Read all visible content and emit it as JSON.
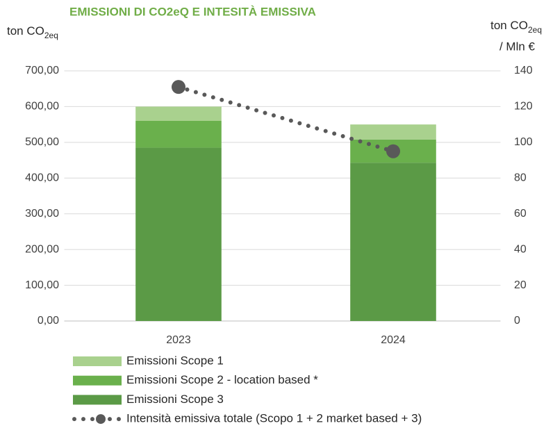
{
  "chart_data": {
    "type": "bar",
    "title": "EMISSIONI DI CO2eQ E INTESITÀ EMISSIVA",
    "y_label": "ton CO",
    "y_label_sub": "2eq",
    "y2_label": "ton CO",
    "y2_label_sub": "2eq",
    "y2_label_line2": "/ Mln €",
    "categories": [
      "2023",
      "2024"
    ],
    "series": [
      {
        "name": "Emissioni Scope 1",
        "color": "#a9d18e",
        "values": [
          40,
          42
        ]
      },
      {
        "name": "Emissioni Scope 2 - location based *",
        "color": "#6ab04c",
        "values": [
          75,
          65
        ]
      },
      {
        "name": "Emissioni Scope 3",
        "color": "#5b9a46",
        "values": [
          485,
          443
        ]
      },
      {
        "name": "Intensità emissiva totale (Scopo 1 + 2 market based + 3)",
        "color": "#595959",
        "type": "line",
        "axis": "y2",
        "values": [
          131,
          95
        ]
      }
    ],
    "stacked": true,
    "ylim": [
      0,
      700
    ],
    "yticks": [
      {
        "value": 0,
        "label": "0,00"
      },
      {
        "value": 100,
        "label": "100,00"
      },
      {
        "value": 200,
        "label": "200,00"
      },
      {
        "value": 300,
        "label": "300,00"
      },
      {
        "value": 400,
        "label": "400,00"
      },
      {
        "value": 500,
        "label": "500,00"
      },
      {
        "value": 600,
        "label": "600,00"
      },
      {
        "value": 700,
        "label": "700,00"
      }
    ],
    "y2lim": [
      0,
      140
    ],
    "y2ticks": [
      0,
      20,
      40,
      60,
      80,
      100,
      120,
      140
    ],
    "grid": true,
    "legend": "bottom"
  }
}
